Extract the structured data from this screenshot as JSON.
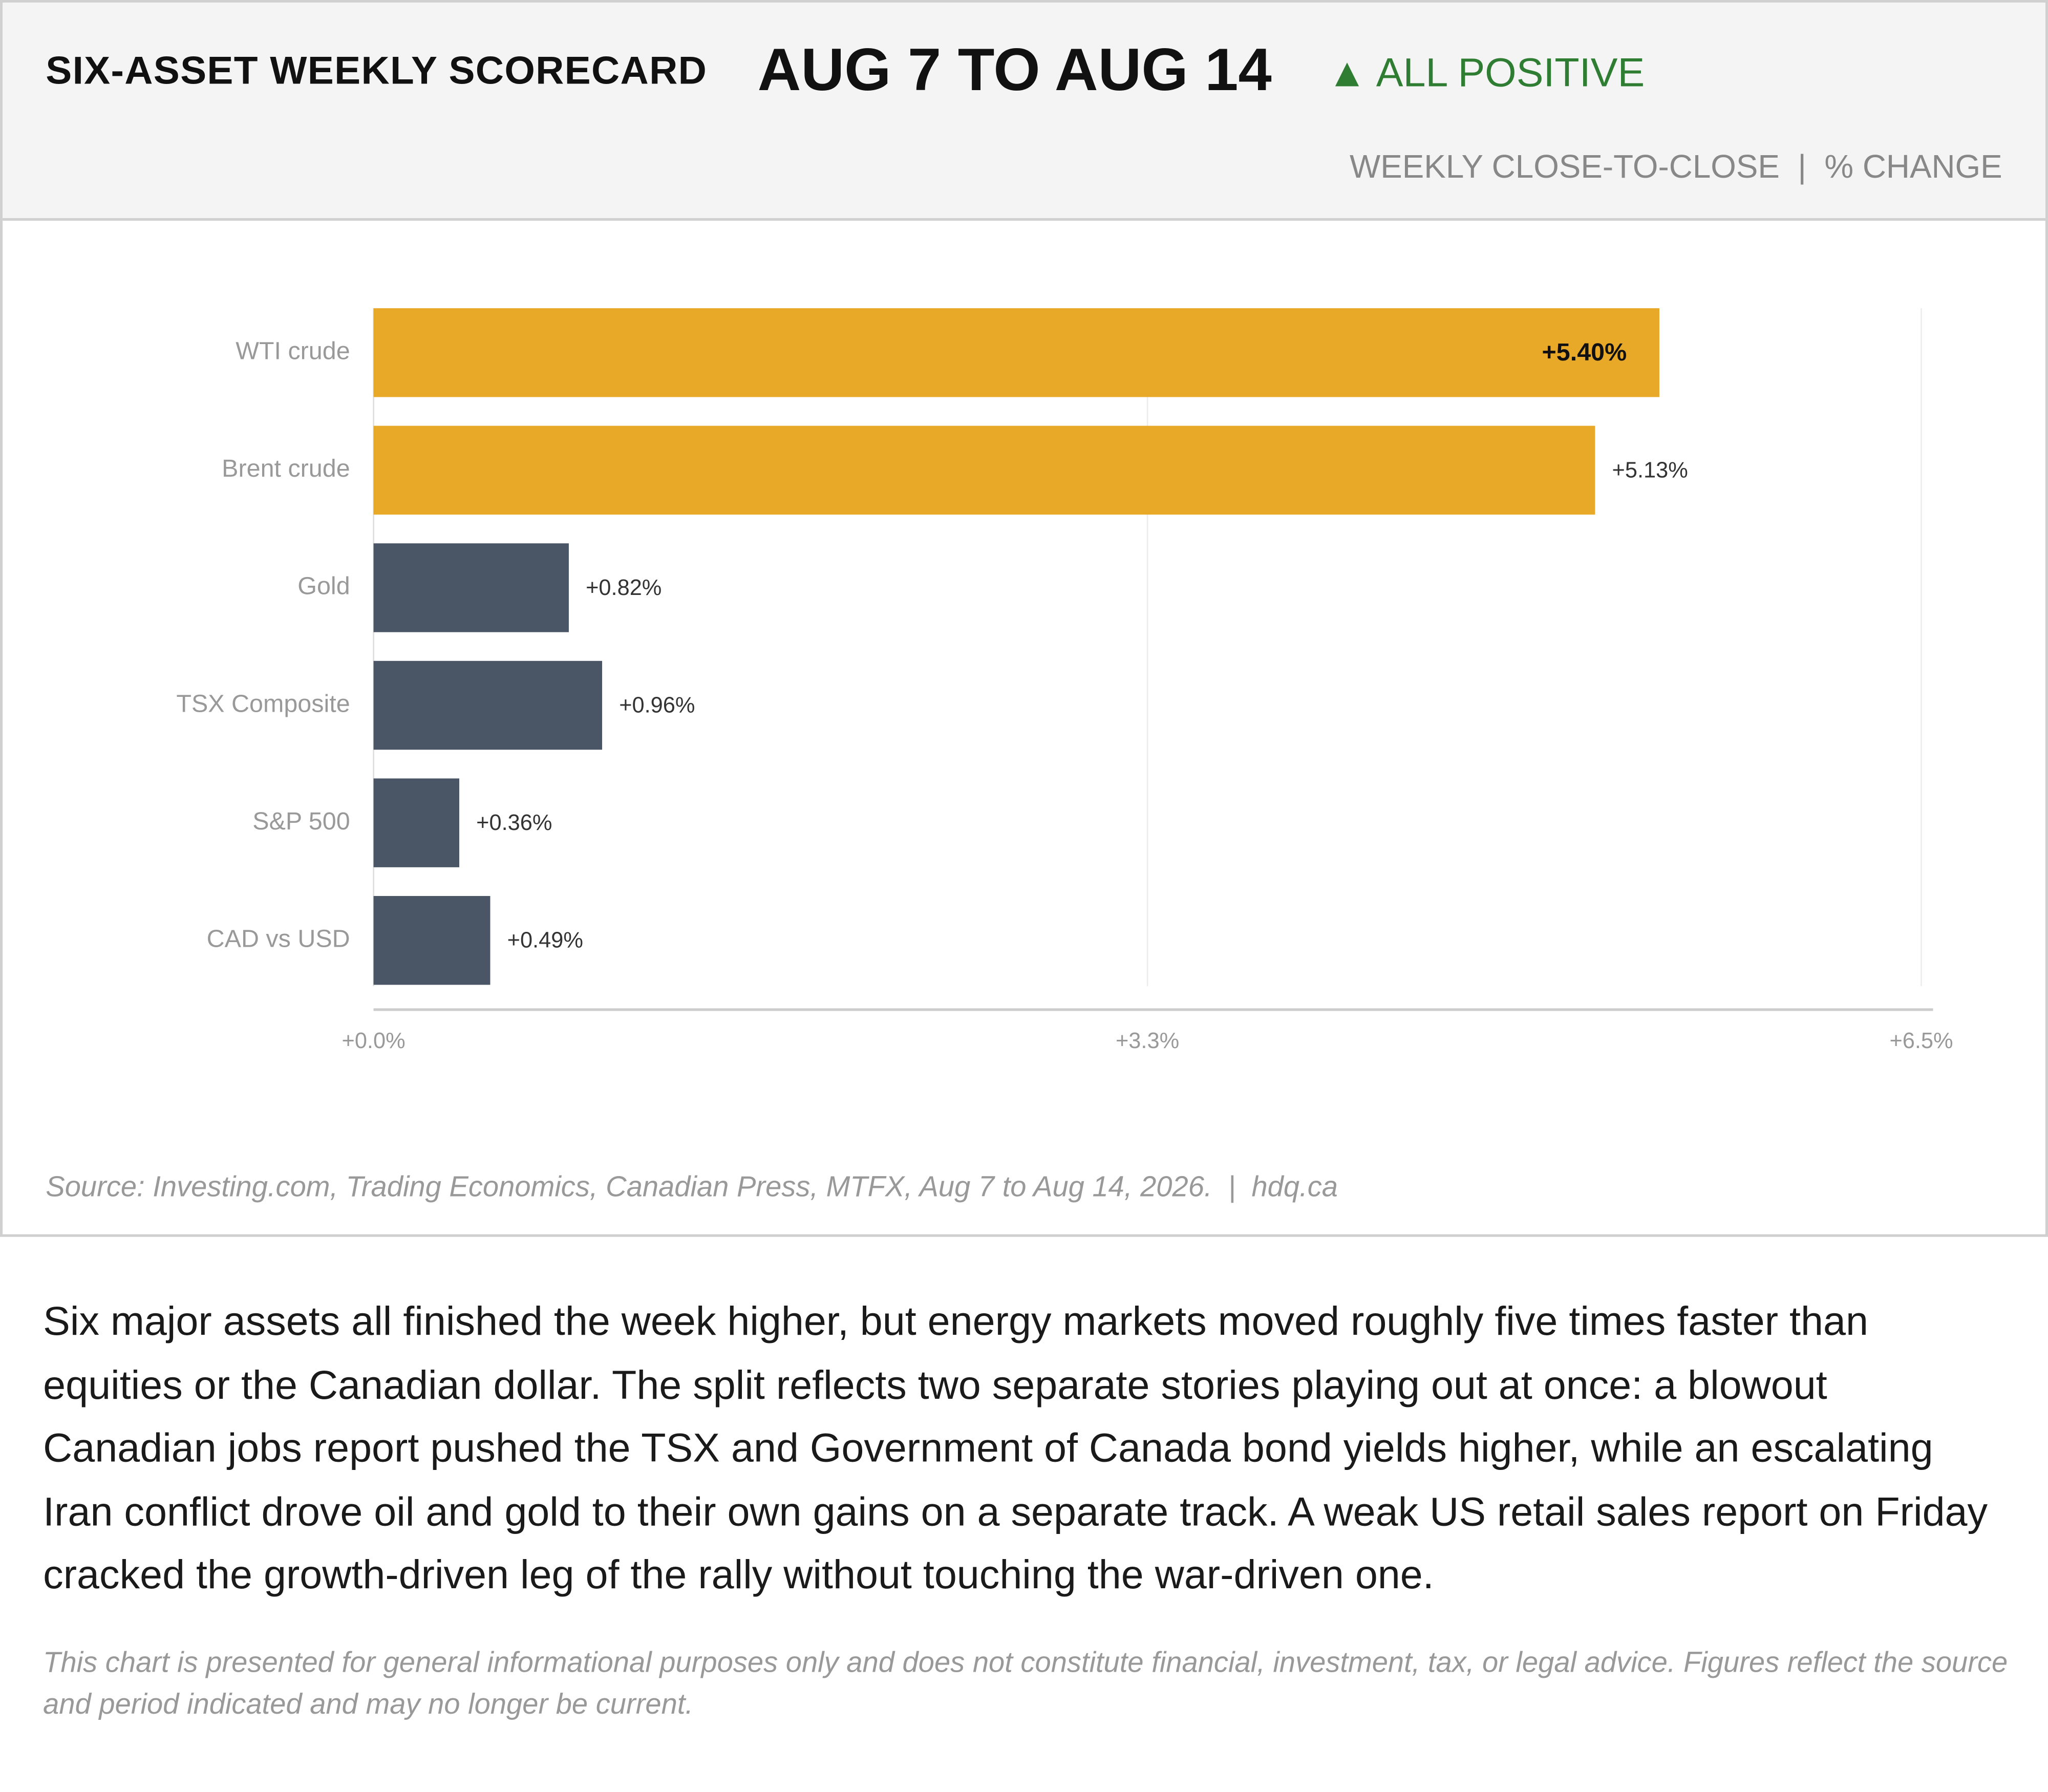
{
  "chart_data": {
    "type": "bar",
    "orientation": "horizontal",
    "title": "SIX-ASSET WEEKLY SCORECARD",
    "period": "AUG 7 TO AUG 14",
    "badge": "▲ ALL POSITIVE",
    "subtitle": "WEEKLY CLOSE-TO-CLOSE  |  % CHANGE",
    "categories": [
      "WTI crude",
      "Brent crude",
      "Gold",
      "TSX Composite",
      "S&P 500",
      "CAD vs USD"
    ],
    "values": [
      5.4,
      5.13,
      0.82,
      0.96,
      0.36,
      0.49
    ],
    "value_labels": [
      "+5.40%",
      "+5.13%",
      "+0.82%",
      "+0.96%",
      "+0.36%",
      "+0.49%"
    ],
    "colors": [
      "#e8a828",
      "#e8a828",
      "#4a5565",
      "#4a5565",
      "#4a5565",
      "#4a5565"
    ],
    "xlim": [
      0,
      6.5
    ],
    "xticks": [
      {
        "value": 0,
        "label": "+0.0%"
      },
      {
        "value": 3.25,
        "label": "+3.3%"
      },
      {
        "value": 6.5,
        "label": "+6.5%"
      }
    ],
    "grid": true,
    "source": "Source: Investing.com, Trading Economics, Canadian Press, MTFX, Aug 7 to Aug 14, 2026.  |  hdq.ca"
  },
  "description": "Six major assets all finished the week higher, but energy markets moved roughly five times faster than equities or the Canadian dollar. The split reflects two separate stories playing out at once: a blowout Canadian jobs report pushed the TSX and Government of Canada bond yields higher, while an escalating Iran conflict drove oil and gold to their own gains on a separate track. A weak US retail sales report on Friday cracked the growth-driven leg of the rally without touching the war-driven one.",
  "disclaimer": "This chart is presented for general informational purposes only and does not constitute financial, investment, tax, or legal advice. Figures reflect the source and period indicated and may no longer be current."
}
